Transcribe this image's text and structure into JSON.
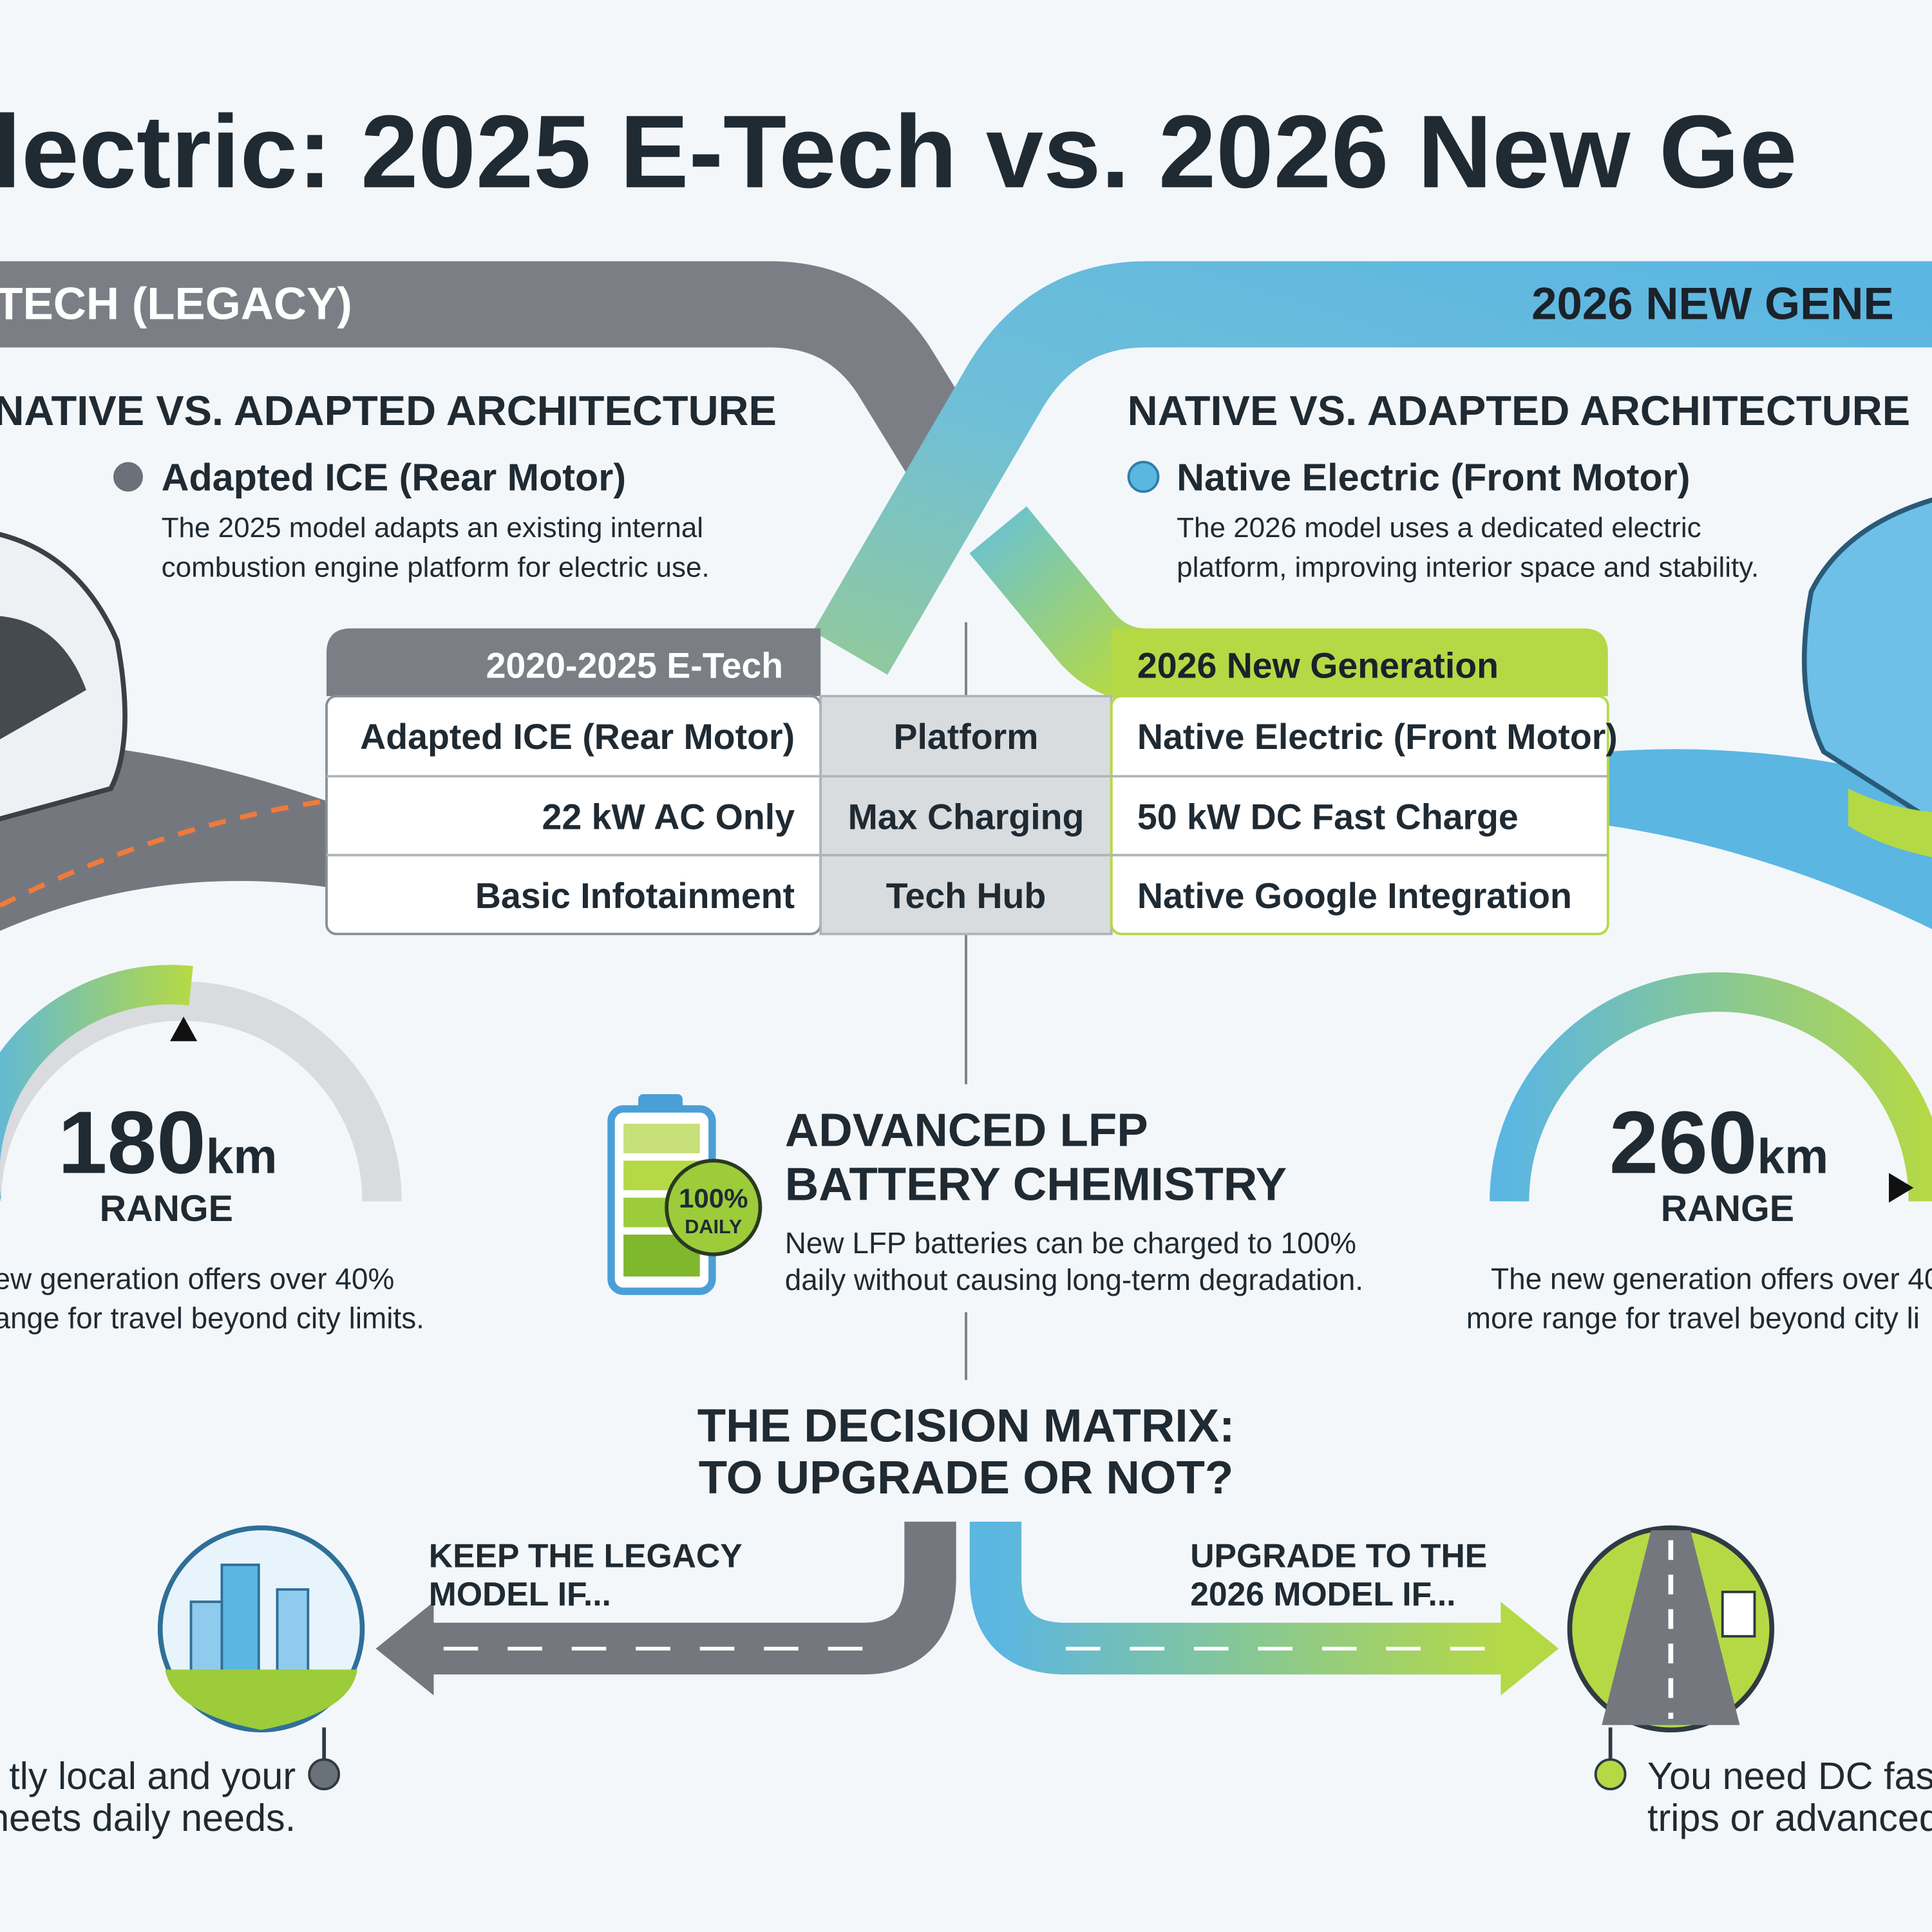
{
  "title": "lectric: 2025 E-Tech vs. 2026 New Ge",
  "left": {
    "banner": "TECH (LEGACY)",
    "heading": "NATIVE VS. ADAPTED ARCHITECTURE",
    "bullet": "Adapted ICE (Rear Motor)",
    "desc": [
      "The 2025 model adapts an existing internal",
      "combustion engine platform for electric use."
    ],
    "range": {
      "value": 180,
      "unit": "km",
      "label": "RANGE"
    },
    "note": [
      "ew generation offers over 40%",
      "ange for travel beyond city limits."
    ]
  },
  "right": {
    "banner": "2026 NEW GENE",
    "heading": "NATIVE VS. ADAPTED ARCHITECTURE",
    "bullet": "Native Electric (Front Motor)",
    "desc": [
      "The 2026 model uses a dedicated electric",
      "platform, improving interior space and stability."
    ],
    "range": {
      "value": 260,
      "unit": "km",
      "label": "RANGE"
    },
    "note": [
      "The new generation offers over 40",
      "more range for travel beyond city li"
    ]
  },
  "table": {
    "headers": [
      "2020-2025 E-Tech",
      "2026 New Generation"
    ],
    "rows": [
      [
        "Adapted ICE (Rear Motor)",
        "Platform",
        "Native Electric (Front Motor)"
      ],
      [
        "22 kW AC Only",
        "Max Charging",
        "50 kW DC Fast Charge"
      ],
      [
        "Basic Infotainment",
        "Tech Hub",
        "Native Google Integration"
      ]
    ]
  },
  "battery": {
    "badge": [
      "100%",
      "DAILY"
    ],
    "title": [
      "ADVANCED LFP",
      "BATTERY CHEMISTRY"
    ],
    "desc": [
      "New LFP batteries can be charged to 100%",
      "daily without causing long-term degradation."
    ]
  },
  "decision": {
    "title": [
      "THE DECISION MATRIX:",
      "TO UPGRADE OR NOT?"
    ],
    "left": {
      "label": [
        "KEEP THE LEGACY",
        "MODEL IF..."
      ],
      "note": [
        "tly local and your",
        "neets daily needs."
      ]
    },
    "right": {
      "label": [
        "UPGRADE TO THE",
        "2026 MODEL IF..."
      ],
      "note": [
        "You need DC fast",
        "trips or advanced"
      ]
    }
  }
}
